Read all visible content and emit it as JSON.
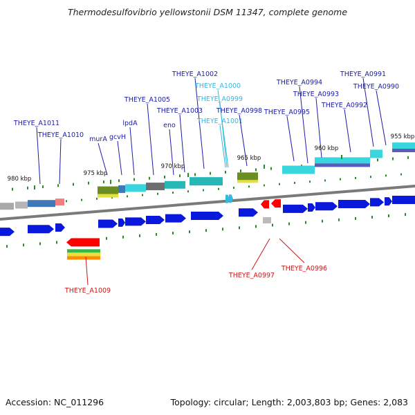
{
  "title": "Thermodesulfovibrio yellowstonii DSM 11347, complete genome",
  "accession": "Accession: NC_011296",
  "summary": "Topology: circular; Length: 2,003,803 bp; Genes: 2,083",
  "colors": {
    "label_dark_blue": "#1a1aa8",
    "label_cyan": "#33b9df",
    "label_red": "#c81818",
    "gene_blue": "#0a18dc",
    "tick_green": "#2a8a2a",
    "backbone": "#7a7a7a"
  },
  "scale_labels": [
    "980 kbp",
    "975 kbp",
    "970 kbp",
    "965 kbp",
    "960 kbp",
    "955 kbp"
  ],
  "gene_labels": [
    {
      "id": "THEYE_A1011",
      "strand": "forward"
    },
    {
      "id": "THEYE_A1010",
      "strand": "forward"
    },
    {
      "id": "murA",
      "strand": "forward"
    },
    {
      "id": "gcvH",
      "strand": "forward"
    },
    {
      "id": "lpdA",
      "strand": "forward"
    },
    {
      "id": "THEYE_A1005",
      "strand": "forward"
    },
    {
      "id": "eno",
      "strand": "forward"
    },
    {
      "id": "THEYE_A1003",
      "strand": "forward"
    },
    {
      "id": "THEYE_A1002",
      "strand": "forward"
    },
    {
      "id": "THEYE_A1000",
      "strand": "forward"
    },
    {
      "id": "THEYE_A0999",
      "strand": "forward"
    },
    {
      "id": "THEYE_A1001",
      "strand": "forward"
    },
    {
      "id": "THEYE_A0998",
      "strand": "forward"
    },
    {
      "id": "THEYE_A0995",
      "strand": "forward"
    },
    {
      "id": "THEYE_A0994",
      "strand": "forward"
    },
    {
      "id": "THEYE_A0993",
      "strand": "forward"
    },
    {
      "id": "THEYE_A0992",
      "strand": "forward"
    },
    {
      "id": "THEYE_A0991",
      "strand": "forward"
    },
    {
      "id": "THEYE_A0990",
      "strand": "forward"
    },
    {
      "id": "THEYE_A1009",
      "strand": "reverse"
    },
    {
      "id": "THEYE_A0997",
      "strand": "reverse"
    },
    {
      "id": "THEYE_A0996",
      "strand": "reverse"
    }
  ]
}
